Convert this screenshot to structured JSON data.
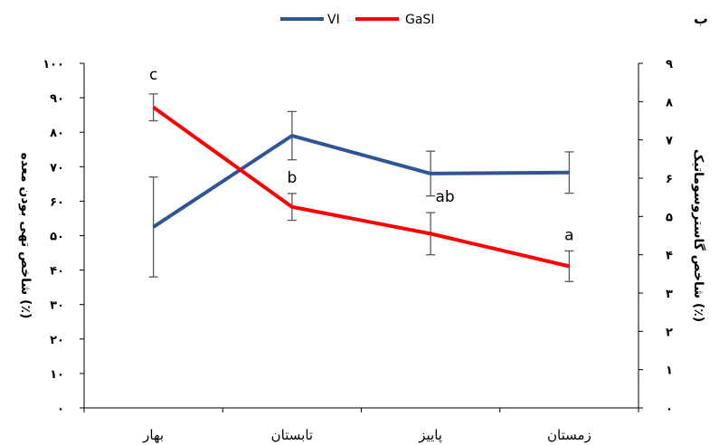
{
  "panel_label": "ب",
  "chart_data": {
    "type": "line",
    "categories": [
      "بهار",
      "تابستان",
      "پاییز",
      "زمستان"
    ],
    "series": [
      {
        "name": "VI",
        "axis": "left",
        "color": "#2f5597",
        "values": [
          52.5,
          79,
          68,
          68.3
        ],
        "error": [
          14.5,
          7,
          6.5,
          6
        ]
      },
      {
        "name": "GaSI",
        "axis": "right",
        "color": "#ff0000",
        "values": [
          7.85,
          5.25,
          4.55,
          3.7
        ],
        "error": [
          0.35,
          0.35,
          0.55,
          0.4
        ],
        "annotations": [
          "c",
          "b",
          "ab",
          "a"
        ]
      }
    ],
    "ylabel_left": "شاخص تهی بودن معده (٪)",
    "ylabel_right": "شاخص گاستروسوماتیک (٪)",
    "ylim_left": [
      0,
      100
    ],
    "yticks_left": [
      "۰",
      "۱۰",
      "۲۰",
      "۳۰",
      "۴۰",
      "۵۰",
      "۶۰",
      "۷۰",
      "۸۰",
      "۹۰",
      "۱۰۰"
    ],
    "ylim_right": [
      0,
      9
    ],
    "yticks_right": [
      "۰",
      "۱",
      "۲",
      "۳",
      "۴",
      "۵",
      "۶",
      "۷",
      "۸",
      "۹"
    ],
    "legend_position": "top",
    "grid": false
  }
}
